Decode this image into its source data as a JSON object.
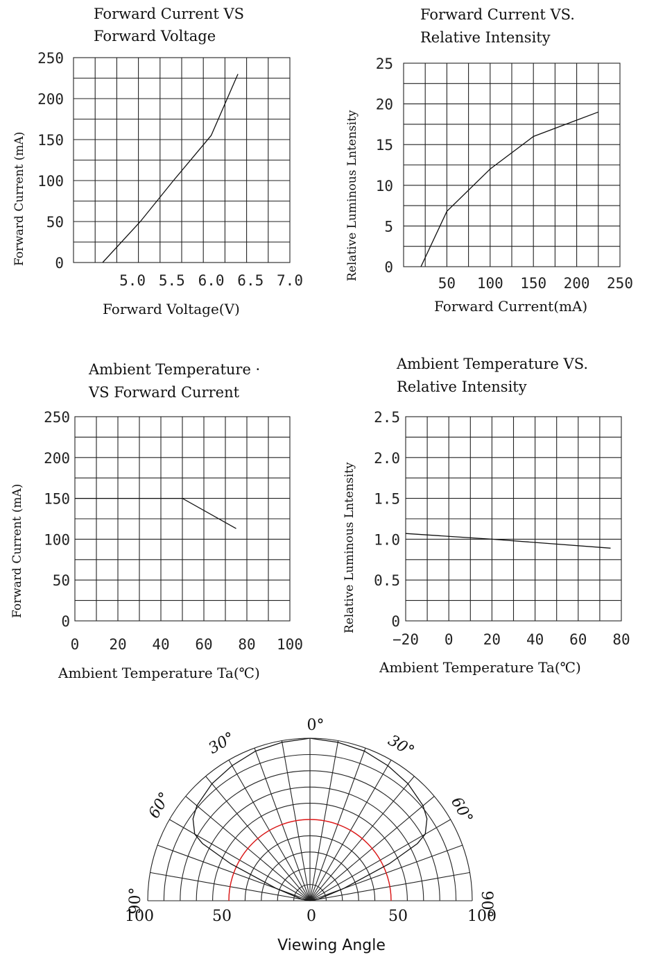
{
  "chart_data": [
    {
      "id": "c1",
      "type": "line",
      "title_lines": [
        "Forward Current VS",
        "Forward Voltage"
      ],
      "xlabel": "Forward Voltage(V)",
      "ylabel": "Forward  Current (mA)",
      "xlim": [
        4.25,
        7.0
      ],
      "ylim": [
        0,
        250
      ],
      "x_ticks": [
        5.0,
        5.5,
        6.0,
        6.5,
        7.0
      ],
      "x_tick_labels": [
        "5.0",
        "5.5",
        "6.0",
        "6.5",
        "7.0"
      ],
      "y_ticks": [
        0,
        50,
        100,
        150,
        200,
        250
      ],
      "y_tick_labels": [
        "0",
        "50",
        "100",
        "150",
        "200",
        "250"
      ],
      "grid": true,
      "series": [
        {
          "x": [
            4.62,
            5.1,
            5.52,
            6.0,
            6.34
          ],
          "y": [
            0,
            50,
            100,
            155,
            230
          ]
        }
      ]
    },
    {
      "id": "c2",
      "type": "line",
      "title_lines": [
        "Forward Current VS.",
        "Relative Intensity"
      ],
      "xlabel": "Forward Current(mA)",
      "ylabel": "Relative Luminous Lntensity",
      "xlim": [
        0,
        250
      ],
      "ylim": [
        0,
        25
      ],
      "x_ticks": [
        50,
        100,
        150,
        200,
        250
      ],
      "x_tick_labels": [
        "50",
        "100",
        "150",
        "200",
        "250"
      ],
      "y_ticks": [
        0,
        5,
        10,
        15,
        20,
        25
      ],
      "y_tick_labels": [
        "0",
        "5",
        "10",
        "15",
        "20",
        "25"
      ],
      "grid": true,
      "series": [
        {
          "x": [
            20,
            50,
            100,
            150,
            200,
            225
          ],
          "y": [
            0,
            6.8,
            12,
            16,
            18,
            19
          ]
        }
      ]
    },
    {
      "id": "c3",
      "type": "line",
      "title_lines": [
        "Ambient Temperature  ·",
        "VS Forward Current"
      ],
      "xlabel": "Ambient Temperature Ta(℃)",
      "ylabel": "Forward  Current (mA)",
      "xlim": [
        0,
        100
      ],
      "ylim": [
        0,
        250
      ],
      "x_ticks": [
        0,
        20,
        40,
        60,
        80,
        100
      ],
      "x_tick_labels": [
        "0",
        "20",
        "40",
        "60",
        "80",
        "100"
      ],
      "y_ticks": [
        0,
        50,
        100,
        150,
        200,
        250
      ],
      "y_tick_labels": [
        "0",
        "50",
        "100",
        "150",
        "200",
        "250"
      ],
      "grid": true,
      "series": [
        {
          "x": [
            0,
            50,
            75
          ],
          "y": [
            150,
            150,
            113
          ]
        }
      ]
    },
    {
      "id": "c4",
      "type": "line",
      "title_lines": [
        "Ambient Temperature VS.",
        "Relative Intensity"
      ],
      "xlabel": "Ambient Temperature Ta(℃)",
      "ylabel": "Relative Luminous Lntensity",
      "xlim": [
        -20,
        80
      ],
      "ylim": [
        0,
        2.5
      ],
      "x_ticks": [
        -20,
        0,
        20,
        40,
        60,
        80
      ],
      "x_tick_labels": [
        "−20",
        "0",
        "20",
        "40",
        "60",
        "80"
      ],
      "y_ticks": [
        0,
        0.5,
        1.0,
        1.5,
        2.0,
        2.5
      ],
      "y_tick_labels": [
        "0",
        "0.5",
        "1.0",
        "1.5",
        "2.0",
        "2.5"
      ],
      "grid": true,
      "series": [
        {
          "x": [
            -20,
            20,
            75
          ],
          "y": [
            1.07,
            1.0,
            0.89
          ]
        }
      ]
    }
  ],
  "polar": {
    "type": "polar",
    "xlabel": "Viewing Angle",
    "angle_labels": [
      "0°",
      "30°",
      "30°",
      "60°",
      "60°",
      "90°",
      "90°"
    ],
    "radial_tick_labels": [
      "100",
      "50",
      "0",
      "50",
      "100"
    ],
    "radial_max": 100,
    "half_angle_intensity": 50,
    "red_circle_color": "#e01818",
    "pattern": {
      "angles_deg": [
        0,
        10,
        20,
        30,
        40,
        50,
        55,
        60,
        62,
        65,
        70,
        80,
        90
      ],
      "intensity": [
        100,
        99,
        98,
        96,
        94,
        91,
        88,
        82,
        75,
        54,
        22,
        5,
        0
      ]
    }
  }
}
